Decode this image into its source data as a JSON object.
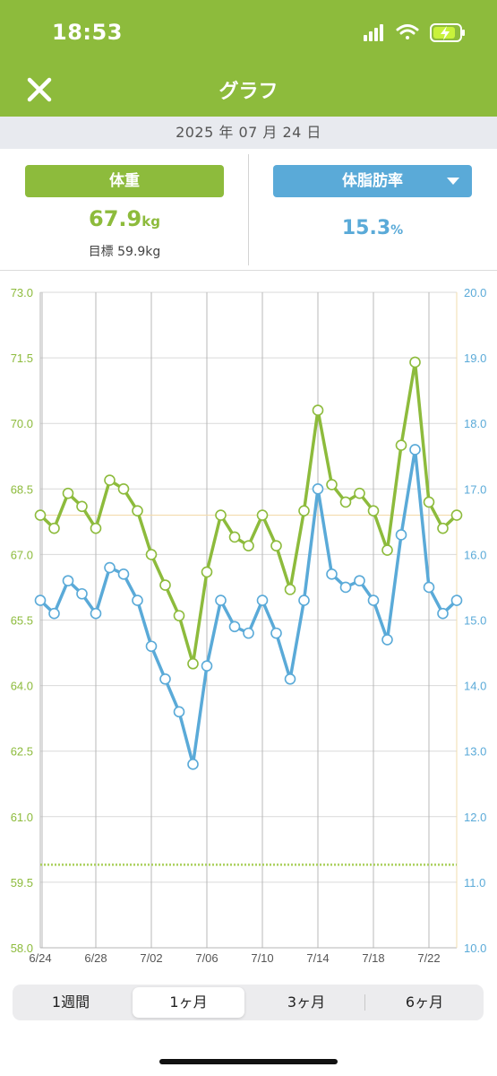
{
  "status_bar": {
    "time": "18:53"
  },
  "nav": {
    "title": "グラフ",
    "close_icon": "close-icon"
  },
  "date_band": {
    "date": "2025 年 07 月 24 日"
  },
  "metrics": {
    "weight": {
      "label": "体重",
      "value": "67.9",
      "unit": "kg",
      "goal": "目標 59.9kg"
    },
    "body_fat": {
      "label": "体脂肪率",
      "value": "15.3",
      "unit": "%"
    }
  },
  "colors": {
    "weight": "#8dbb3c",
    "body_fat": "#5aaad8",
    "header": "#8dbb3c"
  },
  "chart_data": {
    "type": "line",
    "x": [
      "6/24",
      "6/25",
      "6/26",
      "6/27",
      "6/28",
      "6/29",
      "6/30",
      "7/01",
      "7/02",
      "7/03",
      "7/04",
      "7/05",
      "7/06",
      "7/07",
      "7/08",
      "7/09",
      "7/10",
      "7/11",
      "7/12",
      "7/13",
      "7/14",
      "7/15",
      "7/16",
      "7/17",
      "7/18",
      "7/19",
      "7/20",
      "7/21",
      "7/22",
      "7/23",
      "7/24"
    ],
    "x_tick_labels": [
      "6/24",
      "6/28",
      "7/02",
      "7/06",
      "7/10",
      "7/14",
      "7/18",
      "7/22"
    ],
    "y_left": {
      "ylim": [
        58.0,
        73.0
      ],
      "ticks": [
        "58.0",
        "59.5",
        "61.0",
        "62.5",
        "64.0",
        "65.5",
        "67.0",
        "68.5",
        "70.0",
        "71.5",
        "73.0"
      ]
    },
    "y_right": {
      "ylim": [
        10.0,
        20.0
      ],
      "ticks": [
        "10.0",
        "11.0",
        "12.0",
        "13.0",
        "14.0",
        "15.0",
        "16.0",
        "17.0",
        "18.0",
        "19.0",
        "20.0"
      ]
    },
    "reference_lines": {
      "weight_goal": 59.9,
      "current_weight": 67.9
    },
    "series": [
      {
        "axis": "left",
        "values": [
          67.9,
          67.6,
          68.4,
          68.1,
          67.6,
          68.7,
          68.5,
          68.0,
          67.0,
          66.3,
          65.6,
          64.5,
          66.6,
          67.9,
          67.4,
          67.2,
          67.9,
          67.2,
          66.2,
          68.0,
          70.3,
          68.6,
          68.2,
          68.4,
          68.0,
          67.1,
          69.5,
          71.4,
          68.2,
          67.6,
          67.9
        ]
      },
      {
        "axis": "right",
        "values": [
          15.3,
          15.1,
          15.6,
          15.4,
          15.1,
          15.8,
          15.7,
          15.3,
          14.6,
          14.1,
          13.6,
          12.8,
          14.3,
          15.3,
          14.9,
          14.8,
          15.3,
          14.8,
          14.1,
          15.3,
          17.0,
          15.7,
          15.5,
          15.6,
          15.3,
          14.7,
          16.3,
          17.6,
          15.5,
          15.1,
          15.3
        ]
      }
    ]
  },
  "segments": [
    {
      "label": "1週間",
      "active": false
    },
    {
      "label": "1ヶ月",
      "active": true
    },
    {
      "label": "3ヶ月",
      "active": false
    },
    {
      "label": "6ヶ月",
      "active": false
    }
  ]
}
